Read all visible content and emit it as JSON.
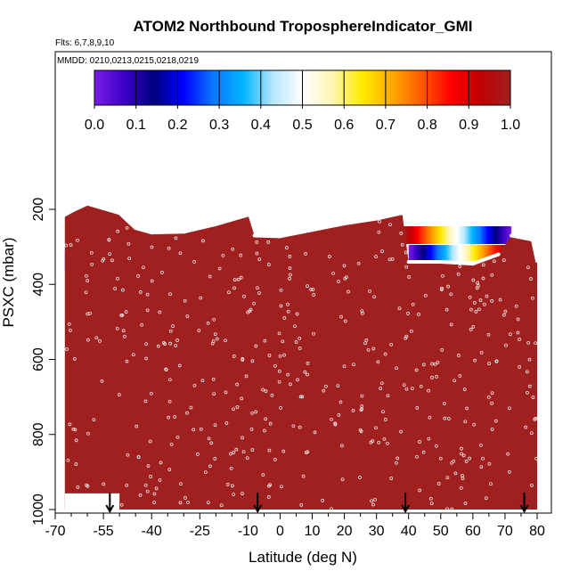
{
  "chart_data": {
    "type": "heatmap",
    "title": "ATOM2 Northbound TroposphereIndicator_GMI",
    "subtitle_flights": "Flts: 6,7,8,9,10",
    "subtitle_dates": "MMDD: 0210,0213,0215,0218,0219",
    "xlabel": "Latitude (deg N)",
    "ylabel": "PSXC (mbar)",
    "xlim": [
      -70,
      82
    ],
    "ylim": [
      1020,
      40
    ],
    "y_reversed": true,
    "x_ticks": [
      -70,
      -55,
      -40,
      -25,
      -10,
      0,
      10,
      20,
      30,
      40,
      50,
      60,
      70,
      80
    ],
    "x_tick_labels": [
      "-70",
      "-55",
      "-40",
      "-25",
      "-10",
      "0",
      "10",
      "20",
      "30",
      "40",
      "50",
      "60",
      "70",
      "80"
    ],
    "x_minor_ticks": [
      -65,
      -60,
      -50,
      -45,
      -35,
      -30,
      -20,
      -15,
      -5,
      5,
      15,
      25,
      35,
      45,
      55,
      65,
      75
    ],
    "y_ticks": [
      200,
      400,
      600,
      800,
      1000
    ],
    "y_tick_labels": [
      "200",
      "400",
      "600",
      "800",
      "1000"
    ],
    "colorbar": {
      "min": 0,
      "max": 1,
      "tick_labels": [
        "0.0",
        "0.1",
        "0.2",
        "0.3",
        "0.4",
        "0.5",
        "0.6",
        "0.7",
        "0.8",
        "0.9",
        "1.0"
      ],
      "colors": [
        "#7a1ee6",
        "#3d00c8",
        "#000080",
        "#0000ff",
        "#0a78ff",
        "#00b4ff",
        "#b4e6ff",
        "#ffffff",
        "#fff5b4",
        "#ffeb00",
        "#ffaa00",
        "#ff5a00",
        "#ff0000",
        "#c00000",
        "#a02020"
      ]
    },
    "troposphere_value": 1.0,
    "troposphere_color": "#a02020",
    "tropopause_profile": [
      {
        "lat": -67,
        "psxc": 215
      },
      {
        "lat": -65,
        "psxc": 205
      },
      {
        "lat": -60,
        "psxc": 185
      },
      {
        "lat": -50,
        "psxc": 210
      },
      {
        "lat": -45,
        "psxc": 250
      },
      {
        "lat": -40,
        "psxc": 262
      },
      {
        "lat": -30,
        "psxc": 260
      },
      {
        "lat": -20,
        "psxc": 240
      },
      {
        "lat": -10,
        "psxc": 215
      },
      {
        "lat": -8,
        "psxc": 270
      },
      {
        "lat": 0,
        "psxc": 272
      },
      {
        "lat": 10,
        "psxc": 255
      },
      {
        "lat": 20,
        "psxc": 238
      },
      {
        "lat": 30,
        "psxc": 225
      },
      {
        "lat": 38,
        "psxc": 210
      },
      {
        "lat": 40,
        "psxc": 340
      },
      {
        "lat": 50,
        "psxc": 340
      },
      {
        "lat": 60,
        "psxc": 345
      },
      {
        "lat": 68,
        "psxc": 320
      },
      {
        "lat": 72,
        "psxc": 270
      },
      {
        "lat": 78,
        "psxc": 280
      },
      {
        "lat": 80,
        "psxc": 360
      }
    ],
    "flight_arrows_lat": [
      -53,
      -7,
      39,
      76
    ]
  }
}
